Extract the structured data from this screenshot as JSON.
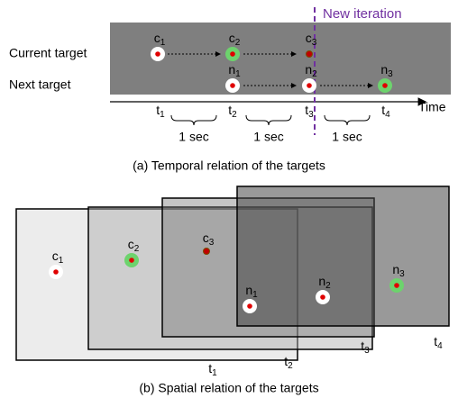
{
  "temporal": {
    "new_iteration": "New iteration",
    "rows": [
      "Current target",
      "Next target"
    ],
    "targets": [
      {
        "base": "c",
        "sub": "1"
      },
      {
        "base": "c",
        "sub": "2"
      },
      {
        "base": "c",
        "sub": "3"
      },
      {
        "base": "n",
        "sub": "1"
      },
      {
        "base": "n",
        "sub": "2"
      },
      {
        "base": "n",
        "sub": "3"
      }
    ],
    "times": [
      {
        "base": "t",
        "sub": "1"
      },
      {
        "base": "t",
        "sub": "2"
      },
      {
        "base": "t",
        "sub": "3"
      },
      {
        "base": "t",
        "sub": "4"
      }
    ],
    "axis_label": "Time",
    "intervals": [
      "1 sec",
      "1 sec",
      "1 sec"
    ],
    "caption": "(a) Temporal relation of the targets"
  },
  "spatial": {
    "targets": [
      {
        "base": "c",
        "sub": "1"
      },
      {
        "base": "c",
        "sub": "2"
      },
      {
        "base": "c",
        "sub": "3"
      },
      {
        "base": "n",
        "sub": "1"
      },
      {
        "base": "n",
        "sub": "2"
      },
      {
        "base": "n",
        "sub": "3"
      }
    ],
    "frames": [
      {
        "base": "t",
        "sub": "1"
      },
      {
        "base": "t",
        "sub": "2"
      },
      {
        "base": "t",
        "sub": "3"
      },
      {
        "base": "t",
        "sub": "4"
      }
    ],
    "caption": "(b) Spatial relation of the targets"
  }
}
